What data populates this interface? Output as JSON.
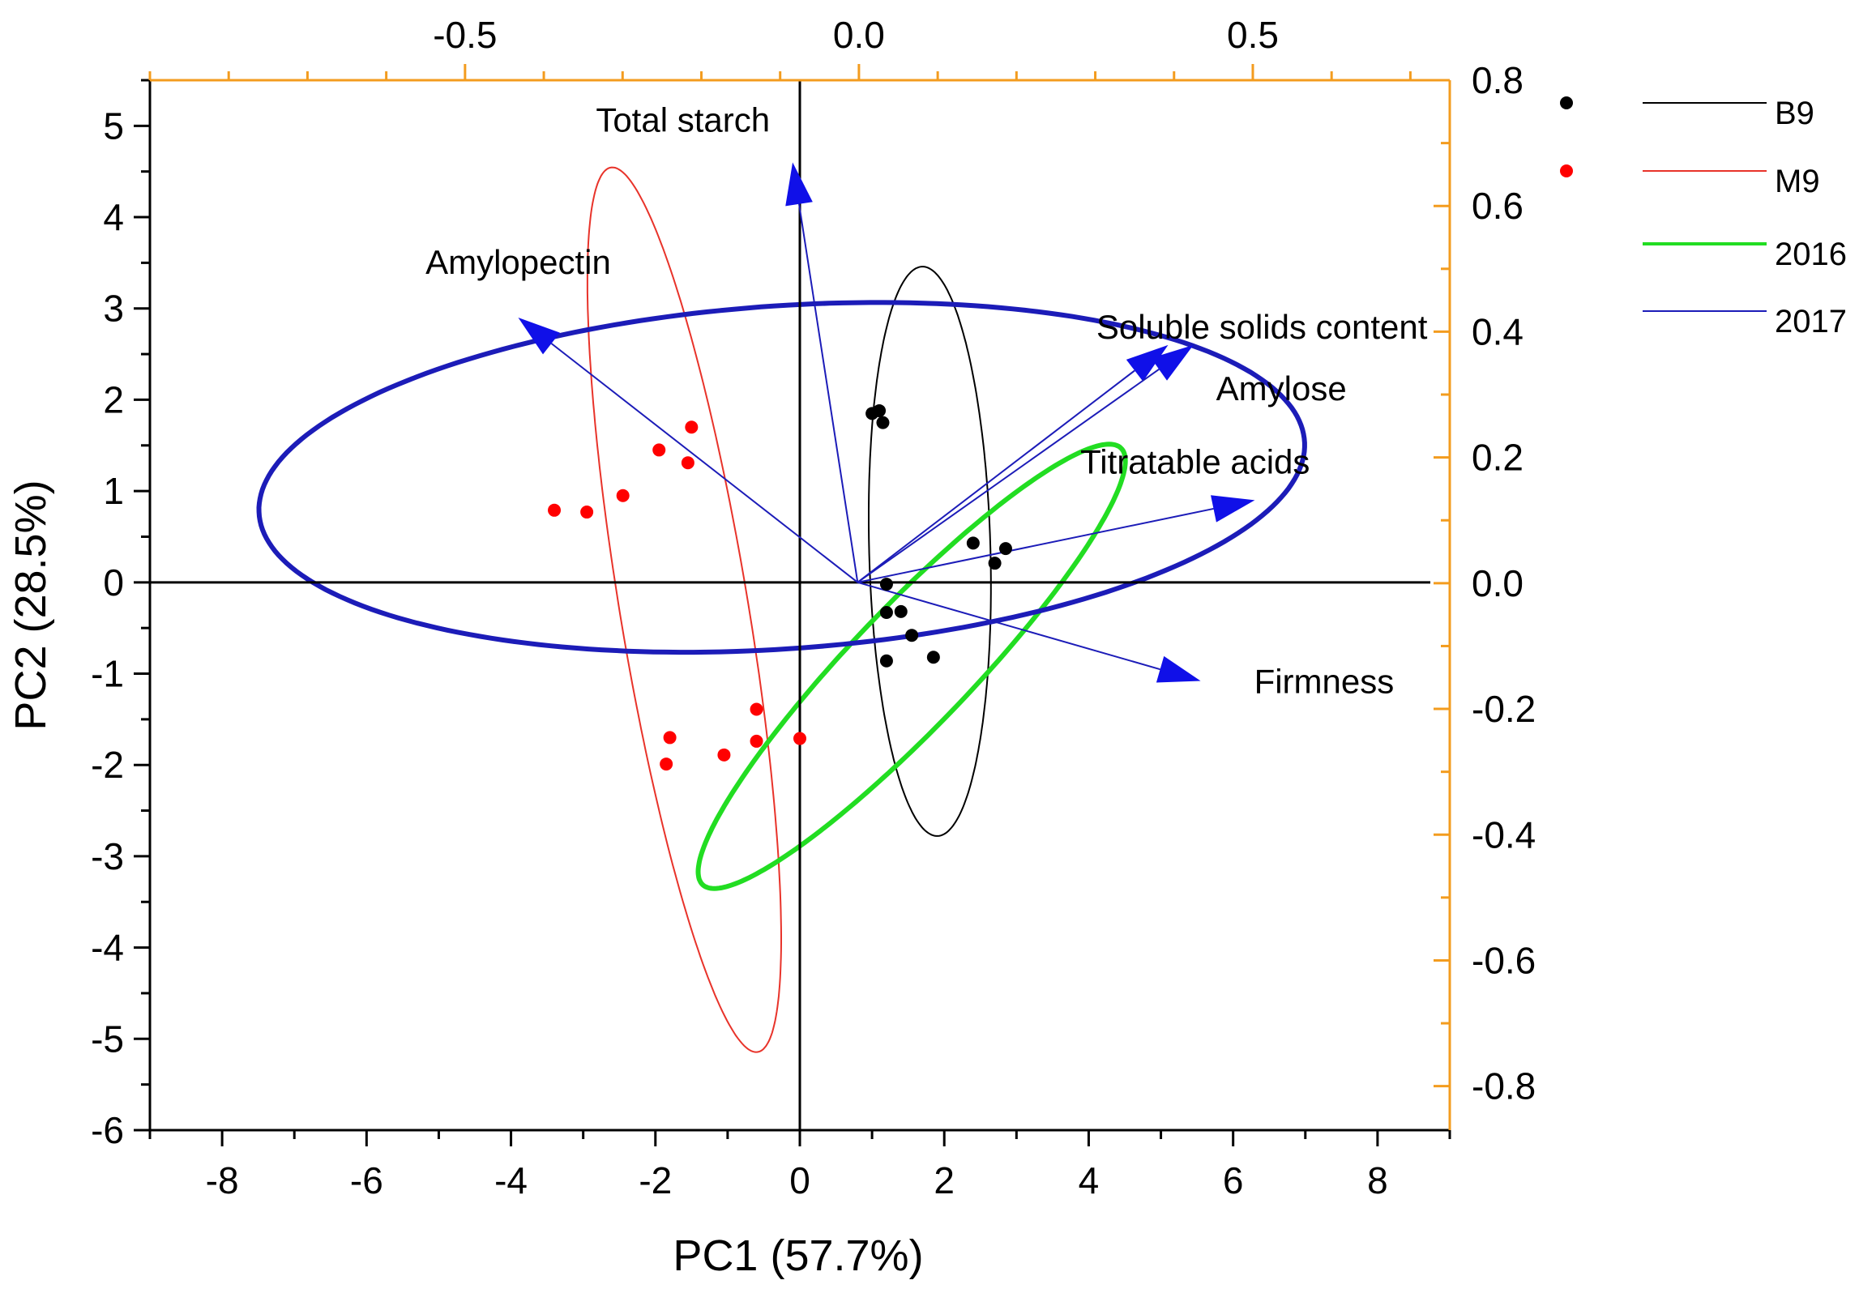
{
  "chart_data": {
    "type": "scatter",
    "subtype": "pca-biplot",
    "title": "",
    "xlabel": "PC1 (57.7%)",
    "ylabel": "PC2 (28.5%)",
    "xlim": [
      -9,
      9
    ],
    "ylim": [
      -6,
      5.5
    ],
    "x_ticks": [
      -8,
      -6,
      -4,
      -2,
      0,
      2,
      4,
      6,
      8
    ],
    "y_ticks": [
      -6,
      -5,
      -4,
      -3,
      -2,
      -1,
      0,
      1,
      2,
      3,
      4,
      5
    ],
    "secondary_x": {
      "lim": [
        -0.9,
        0.75
      ],
      "ticks": [
        -0.5,
        0.0,
        0.5
      ],
      "tick_labels": [
        "-0.5",
        "0.0",
        "0.5"
      ],
      "color": "#f39c1f"
    },
    "secondary_y": {
      "lim": [
        -0.87,
        0.8
      ],
      "ticks": [
        0.8,
        0.6,
        0.4,
        0.2,
        0.0,
        -0.2,
        -0.4,
        -0.6,
        -0.8
      ],
      "tick_labels": [
        "0.8",
        "0.6",
        "0.4",
        "0.2",
        "0.0",
        "-0.2",
        "-0.4",
        "-0.6",
        "-0.8"
      ],
      "color": "#f39c1f"
    },
    "grid": false,
    "legend_position": "right",
    "legend": [
      {
        "label": "",
        "marker": "dot",
        "color": "#000000"
      },
      {
        "label": "",
        "marker": "dot",
        "color": "#ff0000"
      },
      {
        "label": "B9",
        "marker": "line",
        "color": "#000000"
      },
      {
        "label": "M9",
        "marker": "line",
        "color": "#e8332a"
      },
      {
        "label": "2016",
        "marker": "line",
        "color": "#22dd22"
      },
      {
        "label": "2017",
        "marker": "line",
        "color": "#1c1cb8"
      }
    ],
    "series": [
      {
        "name": "B9",
        "color": "#000000",
        "points": [
          [
            1.0,
            1.85
          ],
          [
            1.1,
            1.88
          ],
          [
            1.15,
            1.75
          ],
          [
            2.4,
            0.43
          ],
          [
            2.85,
            0.37
          ],
          [
            2.7,
            0.21
          ],
          [
            1.2,
            -0.02
          ],
          [
            1.2,
            -0.33
          ],
          [
            1.4,
            -0.32
          ],
          [
            1.55,
            -0.58
          ],
          [
            1.85,
            -0.82
          ],
          [
            1.2,
            -0.86
          ]
        ]
      },
      {
        "name": "M9",
        "color": "#ff0000",
        "points": [
          [
            -1.5,
            1.7
          ],
          [
            -1.95,
            1.45
          ],
          [
            -1.55,
            1.31
          ],
          [
            -2.45,
            0.95
          ],
          [
            -3.4,
            0.79
          ],
          [
            -2.95,
            0.77
          ],
          [
            -0.6,
            -1.39
          ],
          [
            -1.8,
            -1.7
          ],
          [
            -1.05,
            -1.89
          ],
          [
            -0.6,
            -1.74
          ],
          [
            0.0,
            -1.71
          ],
          [
            -1.85,
            -1.99
          ]
        ]
      }
    ],
    "ellipses": [
      {
        "name": "B9",
        "color": "#000000",
        "cx": 1.8,
        "cy": 0.34,
        "rx": 3.12,
        "ry": 0.84,
        "angle_deg": -88,
        "stroke_width": 2
      },
      {
        "name": "M9",
        "color": "#e8332a",
        "cx": -1.6,
        "cy": -0.3,
        "rx": 4.95,
        "ry": 0.88,
        "angle_deg": -78,
        "stroke_width": 2
      },
      {
        "name": "2016",
        "color": "#22dd22",
        "cx": 1.55,
        "cy": -0.92,
        "rx": 3.76,
        "ry": 0.73,
        "angle_deg": 39,
        "stroke_width": 6
      },
      {
        "name": "2017",
        "color": "#1c1cb8",
        "cx": -0.25,
        "cy": 1.15,
        "rx": 7.25,
        "ry": 1.88,
        "angle_deg": 3,
        "stroke_width": 6
      }
    ],
    "loadings": {
      "origin": [
        0.8,
        0.0
      ],
      "color": "#1c1cb8",
      "vectors": [
        {
          "label": "Total starch",
          "x": -0.1,
          "y": 4.6
        },
        {
          "label": "Amylopectin",
          "x": -3.9,
          "y": 2.9
        },
        {
          "label": "Soluble solids content",
          "x": 5.1,
          "y": 2.6
        },
        {
          "label": "Amylose",
          "x": 5.45,
          "y": 2.6
        },
        {
          "label": "Titratable acids",
          "x": 6.3,
          "y": 0.9
        },
        {
          "label": "Firmness",
          "x": 5.55,
          "y": -1.08
        }
      ]
    }
  }
}
